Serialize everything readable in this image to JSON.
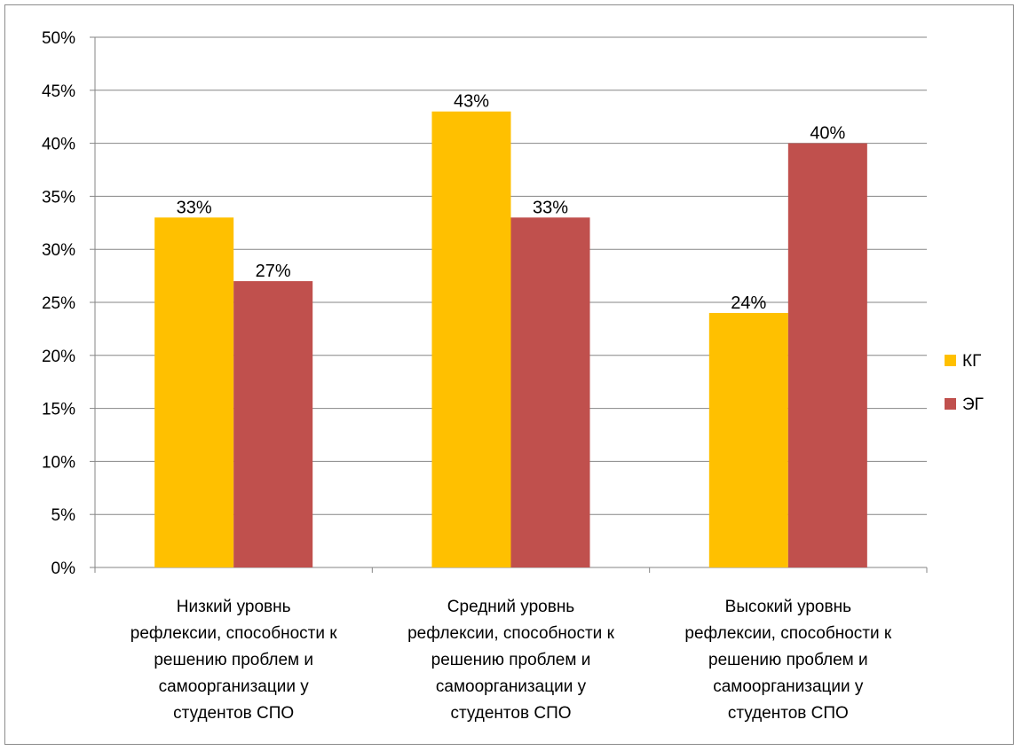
{
  "chart_data": {
    "type": "bar",
    "categories": [
      [
        "Низкий уровнь",
        "рефлексии, способности к",
        "решению проблем и",
        "самоорганизации у",
        "студентов СПО"
      ],
      [
        "Средний уровнь",
        "рефлексии, способности к",
        "решению проблем и",
        "самоорганизации у",
        "студентов СПО"
      ],
      [
        "Высокий уровнь",
        "рефлексии, способности к",
        "решению проблем и",
        "самоорганизации у",
        "студентов СПО"
      ]
    ],
    "series": [
      {
        "name": "КГ",
        "color": "#FFC000",
        "values": [
          33,
          43,
          24
        ]
      },
      {
        "name": "ЭГ",
        "color": "#C0504D",
        "values": [
          27,
          33,
          40
        ]
      }
    ],
    "ylim": [
      0,
      50
    ],
    "yticks": [
      "0%",
      "5%",
      "10%",
      "15%",
      "20%",
      "25%",
      "30%",
      "35%",
      "40%",
      "45%",
      "50%"
    ],
    "value_suffix": "%",
    "grid": true,
    "legend_position": "right",
    "title": "",
    "xlabel": "",
    "ylabel": ""
  }
}
